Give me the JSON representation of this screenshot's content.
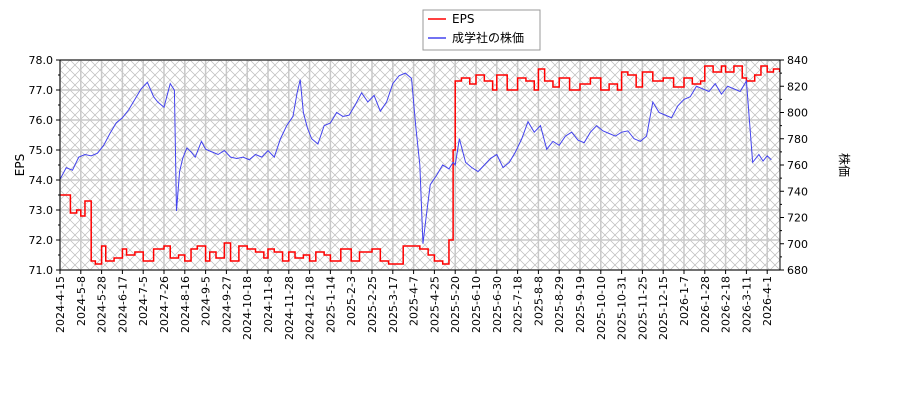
{
  "chart_data": {
    "type": "line",
    "title": "",
    "legend": {
      "position": "top-center",
      "entries": [
        {
          "label": "EPS",
          "color": "#ff0000",
          "axis": "left"
        },
        {
          "label": "成学社の株価",
          "color": "#4444ee",
          "axis": "right"
        }
      ]
    },
    "left_axis": {
      "label": "EPS",
      "ylim": [
        71.0,
        78.0
      ],
      "ticks": [
        "71.0",
        "72.0",
        "73.0",
        "74.0",
        "75.0",
        "76.0",
        "77.0",
        "78.0"
      ]
    },
    "right_axis": {
      "label": "株価",
      "ylim": [
        680,
        840
      ],
      "ticks": [
        "680",
        "700",
        "720",
        "740",
        "760",
        "780",
        "800",
        "820",
        "840"
      ]
    },
    "grid": true,
    "background": "hatched",
    "x_tick_labels": [
      "2024-4-15",
      "2024-5-8",
      "2024-5-28",
      "2024-6-17",
      "2024-7-5",
      "2024-7-26",
      "2024-8-16",
      "2024-9-5",
      "2024-9-27",
      "2024-10-18",
      "2024-11-8",
      "2024-11-28",
      "2024-12-18",
      "2025-1-14",
      "2025-2-3",
      "2025-2-25",
      "2025-3-17",
      "2025-4-7",
      "2025-4-25",
      "2025-5-20",
      "2025-6-10",
      "2025-6-30",
      "2025-7-18",
      "2025-8-8",
      "2025-8-29",
      "2025-9-19",
      "2025-10-10",
      "2025-10-31",
      "2025-11-25",
      "2025-12-15",
      "2026-1-7",
      "2026-1-28",
      "2026-2-18",
      "2026-3-11",
      "2026-4-1"
    ],
    "series": [
      {
        "name": "EPS",
        "axis": "left",
        "color": "#ff0000",
        "x_index": [
          0,
          0.3,
          0.5,
          0.8,
          1.0,
          1.2,
          1.35,
          1.5,
          1.7,
          2.0,
          2.2,
          2.6,
          3.0,
          3.2,
          3.6,
          4.0,
          4.5,
          5.0,
          5.3,
          5.7,
          6.0,
          6.3,
          6.6,
          7.0,
          7.2,
          7.5,
          7.9,
          8.2,
          8.6,
          9.0,
          9.4,
          9.8,
          10.0,
          10.3,
          10.7,
          11.0,
          11.3,
          11.7,
          12.0,
          12.3,
          12.7,
          13.0,
          13.5,
          14.0,
          14.4,
          14.7,
          15.0,
          15.4,
          15.8,
          16.0,
          16.5,
          17.0,
          17.3,
          17.7,
          18.0,
          18.4,
          18.7,
          18.9,
          19.0,
          19.3,
          19.7,
          20.0,
          20.4,
          20.8,
          21.0,
          21.5,
          22.0,
          22.4,
          22.8,
          23.0,
          23.3,
          23.7,
          24.0,
          24.5,
          25.0,
          25.5,
          26.0,
          26.4,
          26.8,
          27.0,
          27.3,
          27.7,
          28.0,
          28.5,
          29.0,
          29.5,
          30.0,
          30.4,
          30.8,
          31.0,
          31.4,
          31.8,
          32.0,
          32.4,
          32.8,
          33.0,
          33.4,
          33.7,
          34.0,
          34.3,
          34.6
        ],
        "values": [
          73.5,
          73.5,
          72.9,
          73.0,
          72.8,
          73.3,
          73.3,
          71.3,
          71.2,
          71.8,
          71.3,
          71.4,
          71.7,
          71.5,
          71.6,
          71.3,
          71.7,
          71.8,
          71.4,
          71.5,
          71.3,
          71.7,
          71.8,
          71.3,
          71.6,
          71.4,
          71.9,
          71.3,
          71.8,
          71.7,
          71.6,
          71.4,
          71.7,
          71.6,
          71.3,
          71.6,
          71.4,
          71.5,
          71.3,
          71.6,
          71.5,
          71.3,
          71.7,
          71.3,
          71.6,
          71.6,
          71.7,
          71.3,
          71.2,
          71.2,
          71.8,
          71.8,
          71.7,
          71.5,
          71.3,
          71.2,
          72.0,
          75.0,
          77.3,
          77.4,
          77.2,
          77.5,
          77.3,
          77.0,
          77.5,
          77.0,
          77.4,
          77.3,
          77.0,
          77.7,
          77.3,
          77.1,
          77.4,
          77.0,
          77.2,
          77.4,
          77.0,
          77.2,
          77.0,
          77.6,
          77.5,
          77.1,
          77.6,
          77.3,
          77.4,
          77.1,
          77.4,
          77.2,
          77.3,
          77.8,
          77.6,
          77.8,
          77.6,
          77.8,
          77.4,
          77.3,
          77.5,
          77.8,
          77.6,
          77.7,
          77.6
        ]
      },
      {
        "name": "成学社の株価",
        "axis": "right",
        "color": "#4444ee",
        "x_index": [
          0,
          0.3,
          0.6,
          0.9,
          1.2,
          1.5,
          1.8,
          2.1,
          2.4,
          2.7,
          3.0,
          3.3,
          3.6,
          3.9,
          4.2,
          4.5,
          4.7,
          5.0,
          5.3,
          5.5,
          5.6,
          5.75,
          5.9,
          6.1,
          6.3,
          6.5,
          6.8,
          7.0,
          7.3,
          7.6,
          7.9,
          8.2,
          8.5,
          8.8,
          9.1,
          9.4,
          9.7,
          10.0,
          10.3,
          10.6,
          10.9,
          11.2,
          11.4,
          11.55,
          11.7,
          11.9,
          12.1,
          12.4,
          12.7,
          13.0,
          13.3,
          13.6,
          13.9,
          14.2,
          14.5,
          14.8,
          15.1,
          15.4,
          15.7,
          16.0,
          16.3,
          16.6,
          16.9,
          17.1,
          17.3,
          17.45,
          17.6,
          17.8,
          18.1,
          18.4,
          18.7,
          18.9,
          19.0,
          19.2,
          19.5,
          19.8,
          20.1,
          20.4,
          20.7,
          21.0,
          21.3,
          21.6,
          21.9,
          22.2,
          22.5,
          22.8,
          23.1,
          23.4,
          23.7,
          24.0,
          24.3,
          24.6,
          24.9,
          25.2,
          25.5,
          25.8,
          26.1,
          26.4,
          26.7,
          27.0,
          27.3,
          27.6,
          27.9,
          28.2,
          28.5,
          28.8,
          29.1,
          29.4,
          29.7,
          30.0,
          30.3,
          30.6,
          30.9,
          31.2,
          31.5,
          31.8,
          32.1,
          32.4,
          32.7,
          33.0,
          33.3,
          33.6,
          33.8,
          34.0,
          34.2,
          34.4,
          34.6
        ],
        "values": [
          749,
          758,
          756,
          766,
          768,
          767,
          769,
          775,
          784,
          792,
          796,
          802,
          810,
          818,
          823,
          812,
          808,
          804,
          822,
          817,
          725,
          755,
          765,
          773,
          770,
          766,
          778,
          772,
          770,
          768,
          771,
          766,
          765,
          766,
          764,
          768,
          766,
          771,
          766,
          780,
          790,
          797,
          815,
          825,
          800,
          788,
          780,
          776,
          790,
          792,
          800,
          797,
          798,
          806,
          815,
          808,
          813,
          801,
          808,
          822,
          828,
          830,
          826,
          790,
          760,
          700,
          720,
          745,
          752,
          760,
          757,
          762,
          760,
          780,
          762,
          758,
          755,
          760,
          765,
          768,
          758,
          762,
          770,
          780,
          793,
          785,
          790,
          772,
          778,
          775,
          782,
          785,
          779,
          777,
          785,
          790,
          786,
          784,
          782,
          785,
          786,
          780,
          778,
          782,
          808,
          800,
          798,
          796,
          805,
          810,
          812,
          820,
          818,
          816,
          822,
          814,
          820,
          818,
          816,
          824,
          762,
          768,
          763,
          767,
          764
        ]
      }
    ]
  }
}
